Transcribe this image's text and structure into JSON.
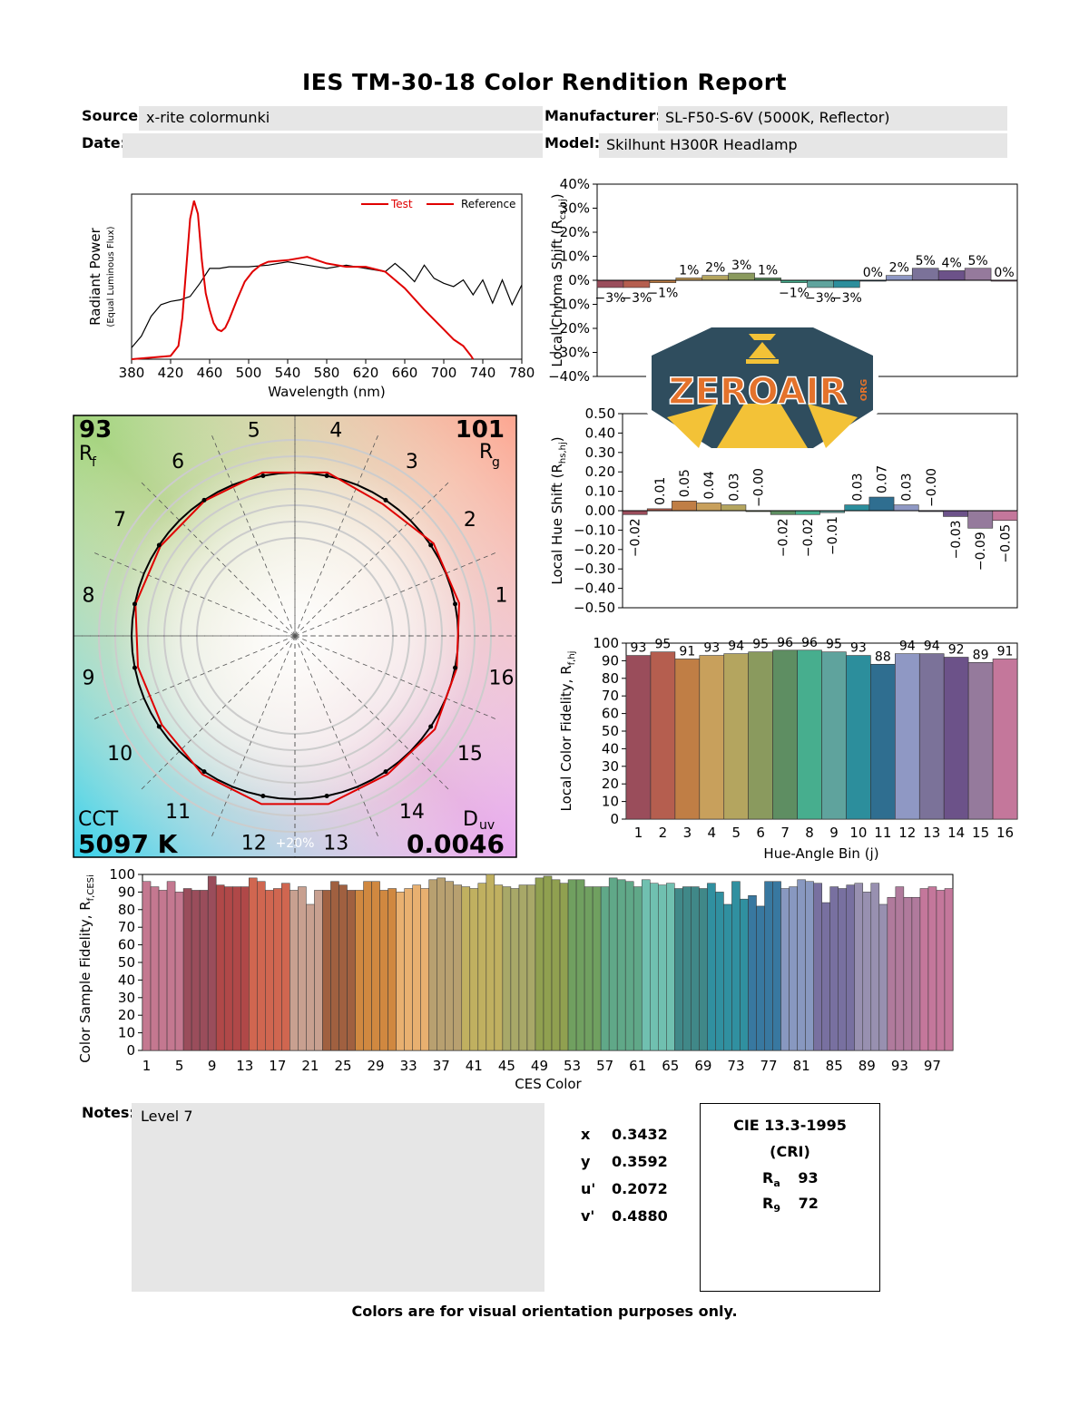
{
  "report": {
    "title": "IES TM-30-18 Color Rendition Report",
    "source_label": "Source:",
    "source_value": "x-rite colormunki",
    "manufacturer_label": "Manufacturer:",
    "manufacturer_value": "SL-F50-S-6V (5000K, Reflector)",
    "date_label": "Date:",
    "date_value": "",
    "model_label": "Model:",
    "model_value": "Skilhunt H300R Headlamp",
    "notes_label": "Notes:",
    "notes_value": "Level 7",
    "footer": "Colors are for visual orientation purposes only."
  },
  "chromaticity": {
    "x_label": "x",
    "x_value": "0.3432",
    "y_label": "y",
    "y_value": "0.3592",
    "u_label": "u'",
    "u_value": "0.2072",
    "v_label": "v'",
    "v_value": "0.4880"
  },
  "cri": {
    "title1": "CIE 13.3-1995",
    "title2": "(CRI)",
    "ra_label": "R",
    "ra_sub": "a",
    "ra_value": "93",
    "r9_label": "R",
    "r9_sub": "9",
    "r9_value": "72"
  },
  "logo": {
    "text": "ZEROAIR",
    "org": "ORG"
  },
  "colors": {
    "test": "#e00000",
    "reference": "#000000",
    "bins": [
      "#9a4d5b",
      "#b55e4f",
      "#c07e45",
      "#c8a05c",
      "#b4a55f",
      "#8a9a5e",
      "#5e8e62",
      "#47ae8e",
      "#5fa39d",
      "#2c8e9c",
      "#2f6e90",
      "#8f98c4",
      "#7b7299",
      "#6c5289",
      "#957a9c",
      "#c4779b"
    ]
  },
  "chart_data": [
    {
      "id": "spd",
      "type": "line",
      "title": "",
      "xlabel": "Wavelength (nm)",
      "ylabel": "Radiant Power",
      "ylabel_sub": "(Equal Luminous Flux)",
      "xlim": [
        380,
        780
      ],
      "xticks": [
        380,
        420,
        460,
        500,
        540,
        580,
        620,
        660,
        700,
        740,
        780
      ],
      "legend": [
        "Test",
        "Reference"
      ],
      "legend_position": "top-right",
      "series": [
        {
          "name": "Test",
          "x": [
            380,
            420,
            428,
            432,
            436,
            440,
            444,
            448,
            452,
            456,
            460,
            464,
            468,
            472,
            476,
            480,
            488,
            496,
            504,
            512,
            520,
            540,
            560,
            580,
            600,
            620,
            640,
            660,
            680,
            700,
            710,
            720,
            724,
            728,
            730
          ],
          "y": [
            0,
            0.02,
            0.08,
            0.25,
            0.55,
            0.85,
            0.96,
            0.88,
            0.6,
            0.4,
            0.3,
            0.22,
            0.18,
            0.17,
            0.19,
            0.24,
            0.36,
            0.47,
            0.53,
            0.57,
            0.59,
            0.6,
            0.62,
            0.58,
            0.56,
            0.56,
            0.53,
            0.43,
            0.3,
            0.18,
            0.12,
            0.08,
            0.05,
            0.02,
            0
          ]
        },
        {
          "name": "Reference",
          "x": [
            380,
            390,
            400,
            410,
            420,
            430,
            440,
            450,
            460,
            470,
            480,
            500,
            520,
            540,
            560,
            580,
            600,
            620,
            640,
            650,
            660,
            670,
            680,
            690,
            700,
            710,
            720,
            730,
            740,
            750,
            760,
            770,
            780
          ],
          "y": [
            0.07,
            0.14,
            0.26,
            0.33,
            0.35,
            0.36,
            0.38,
            0.46,
            0.55,
            0.55,
            0.56,
            0.56,
            0.57,
            0.59,
            0.57,
            0.55,
            0.57,
            0.55,
            0.53,
            0.58,
            0.53,
            0.47,
            0.57,
            0.49,
            0.46,
            0.44,
            0.48,
            0.39,
            0.48,
            0.34,
            0.48,
            0.33,
            0.45
          ]
        }
      ]
    },
    {
      "id": "chroma",
      "type": "bar",
      "ylabel": "Local Chroma Shift (R",
      "ylabel_sub": "cs,hj",
      "ylabel_end": ")",
      "ylim": [
        -40,
        40
      ],
      "yticks": [
        "40%",
        "30%",
        "20%",
        "10%",
        "0%",
        "−10%",
        "−20%",
        "−30%",
        "−40%"
      ],
      "categories": [
        "1",
        "2",
        "3",
        "4",
        "5",
        "6",
        "7",
        "8",
        "9",
        "10",
        "11",
        "12",
        "13",
        "14",
        "15",
        "16"
      ],
      "values": [
        -3,
        -3,
        -1,
        1,
        2,
        3,
        1,
        -1,
        -3,
        -3,
        0,
        2,
        5,
        4,
        5,
        0
      ],
      "labels": [
        "−3%",
        "−3%",
        "−1%",
        "1%",
        "2%",
        "3%",
        "1%",
        "−1%",
        "−3%",
        "−3%",
        "0%",
        "2%",
        "5%",
        "4%",
        "5%",
        "0%"
      ]
    },
    {
      "id": "hue",
      "type": "bar",
      "ylabel": "Local Hue Shift (R",
      "ylabel_sub": "hs,hj",
      "ylabel_end": ")",
      "ylim": [
        -0.5,
        0.5
      ],
      "yticks": [
        "0.50",
        "0.40",
        "0.30",
        "0.20",
        "0.10",
        "0.00",
        "−0.10",
        "−0.20",
        "−0.30",
        "−0.40",
        "−0.50"
      ],
      "categories": [
        "1",
        "2",
        "3",
        "4",
        "5",
        "6",
        "7",
        "8",
        "9",
        "10",
        "11",
        "12",
        "13",
        "14",
        "15",
        "16"
      ],
      "values": [
        -0.02,
        0.01,
        0.05,
        0.04,
        0.03,
        -0.0,
        -0.02,
        -0.02,
        -0.01,
        0.03,
        0.07,
        0.03,
        -0.0,
        -0.03,
        -0.09,
        -0.05
      ],
      "labels": [
        "−0.02",
        "0.01",
        "0.05",
        "0.04",
        "0.03",
        "−0.00",
        "−0.02",
        "−0.02",
        "−0.01",
        "0.03",
        "0.07",
        "0.03",
        "−0.00",
        "−0.03",
        "−0.09",
        "−0.05"
      ]
    },
    {
      "id": "fidelity",
      "type": "bar",
      "xlabel": "Hue-Angle Bin (j)",
      "ylabel": "Local Color Fidelity, R",
      "ylabel_sub": "f,hj",
      "ylim": [
        0,
        100
      ],
      "yticks": [
        "100",
        "90",
        "80",
        "70",
        "60",
        "50",
        "40",
        "30",
        "20",
        "10",
        "0"
      ],
      "categories": [
        "1",
        "2",
        "3",
        "4",
        "5",
        "6",
        "7",
        "8",
        "9",
        "10",
        "11",
        "12",
        "13",
        "14",
        "15",
        "16"
      ],
      "values": [
        93,
        95,
        91,
        93,
        94,
        95,
        96,
        96,
        95,
        93,
        88,
        94,
        94,
        92,
        89,
        91
      ]
    },
    {
      "id": "ces",
      "type": "bar",
      "xlabel": "CES Color",
      "ylabel": "Color Sample Fidelity, R",
      "ylabel_sub": "f,CESi",
      "ylim": [
        0,
        100
      ],
      "yticks": [
        "100",
        "90",
        "80",
        "70",
        "60",
        "50",
        "40",
        "30",
        "20",
        "10",
        "0"
      ],
      "xticks": [
        "1",
        "5",
        "9",
        "13",
        "17",
        "21",
        "25",
        "29",
        "33",
        "37",
        "41",
        "45",
        "49",
        "53",
        "57",
        "61",
        "65",
        "69",
        "73",
        "77",
        "81",
        "85",
        "89",
        "93",
        "97"
      ],
      "values": [
        96,
        93,
        91,
        96,
        90,
        92,
        91,
        91,
        99,
        94,
        93,
        93,
        93,
        98,
        96,
        91,
        92,
        95,
        91,
        93,
        83,
        91,
        91,
        96,
        94,
        91,
        91,
        96,
        96,
        91,
        92,
        90,
        92,
        94,
        92,
        97,
        98,
        96,
        94,
        93,
        92,
        95,
        100,
        94,
        93,
        92,
        94,
        94,
        98,
        99,
        97,
        95,
        97,
        97,
        93,
        93,
        93,
        98,
        97,
        96,
        93,
        97,
        95,
        94,
        95,
        92,
        93,
        93,
        92,
        95,
        90,
        83,
        96,
        86,
        88,
        82,
        96,
        96,
        92,
        93,
        97,
        96,
        95,
        84,
        93,
        92,
        94,
        95,
        90,
        95,
        83,
        87,
        93,
        87,
        87,
        92,
        93,
        91,
        92
      ]
    },
    {
      "id": "cvg",
      "type": "line",
      "title": "",
      "rf_value": "93",
      "rf_label": "R",
      "rf_sub": "f",
      "rg_value": "101",
      "rg_label": "R",
      "rg_sub": "g",
      "cct_label": "CCT",
      "cct_value": "5097 K",
      "duv_label": "D",
      "duv_sub": "uv",
      "duv_value": "0.0046",
      "scale_label": "+20%",
      "bin_labels": [
        "1",
        "2",
        "3",
        "4",
        "5",
        "6",
        "7",
        "8",
        "9",
        "10",
        "11",
        "12",
        "13",
        "14",
        "15",
        "16"
      ],
      "test_radius": [
        1.025,
        1.02,
        0.97,
        1.02,
        1.02,
        0.995,
        0.99,
        0.995,
        0.98,
        0.98,
        1.02,
        1.05,
        1.05,
        1.02,
        1.03,
        1.01
      ],
      "reference_radius": [
        1,
        1,
        1,
        1,
        1,
        1,
        1,
        1,
        1,
        1,
        1,
        1,
        1,
        1,
        1,
        1
      ]
    }
  ]
}
